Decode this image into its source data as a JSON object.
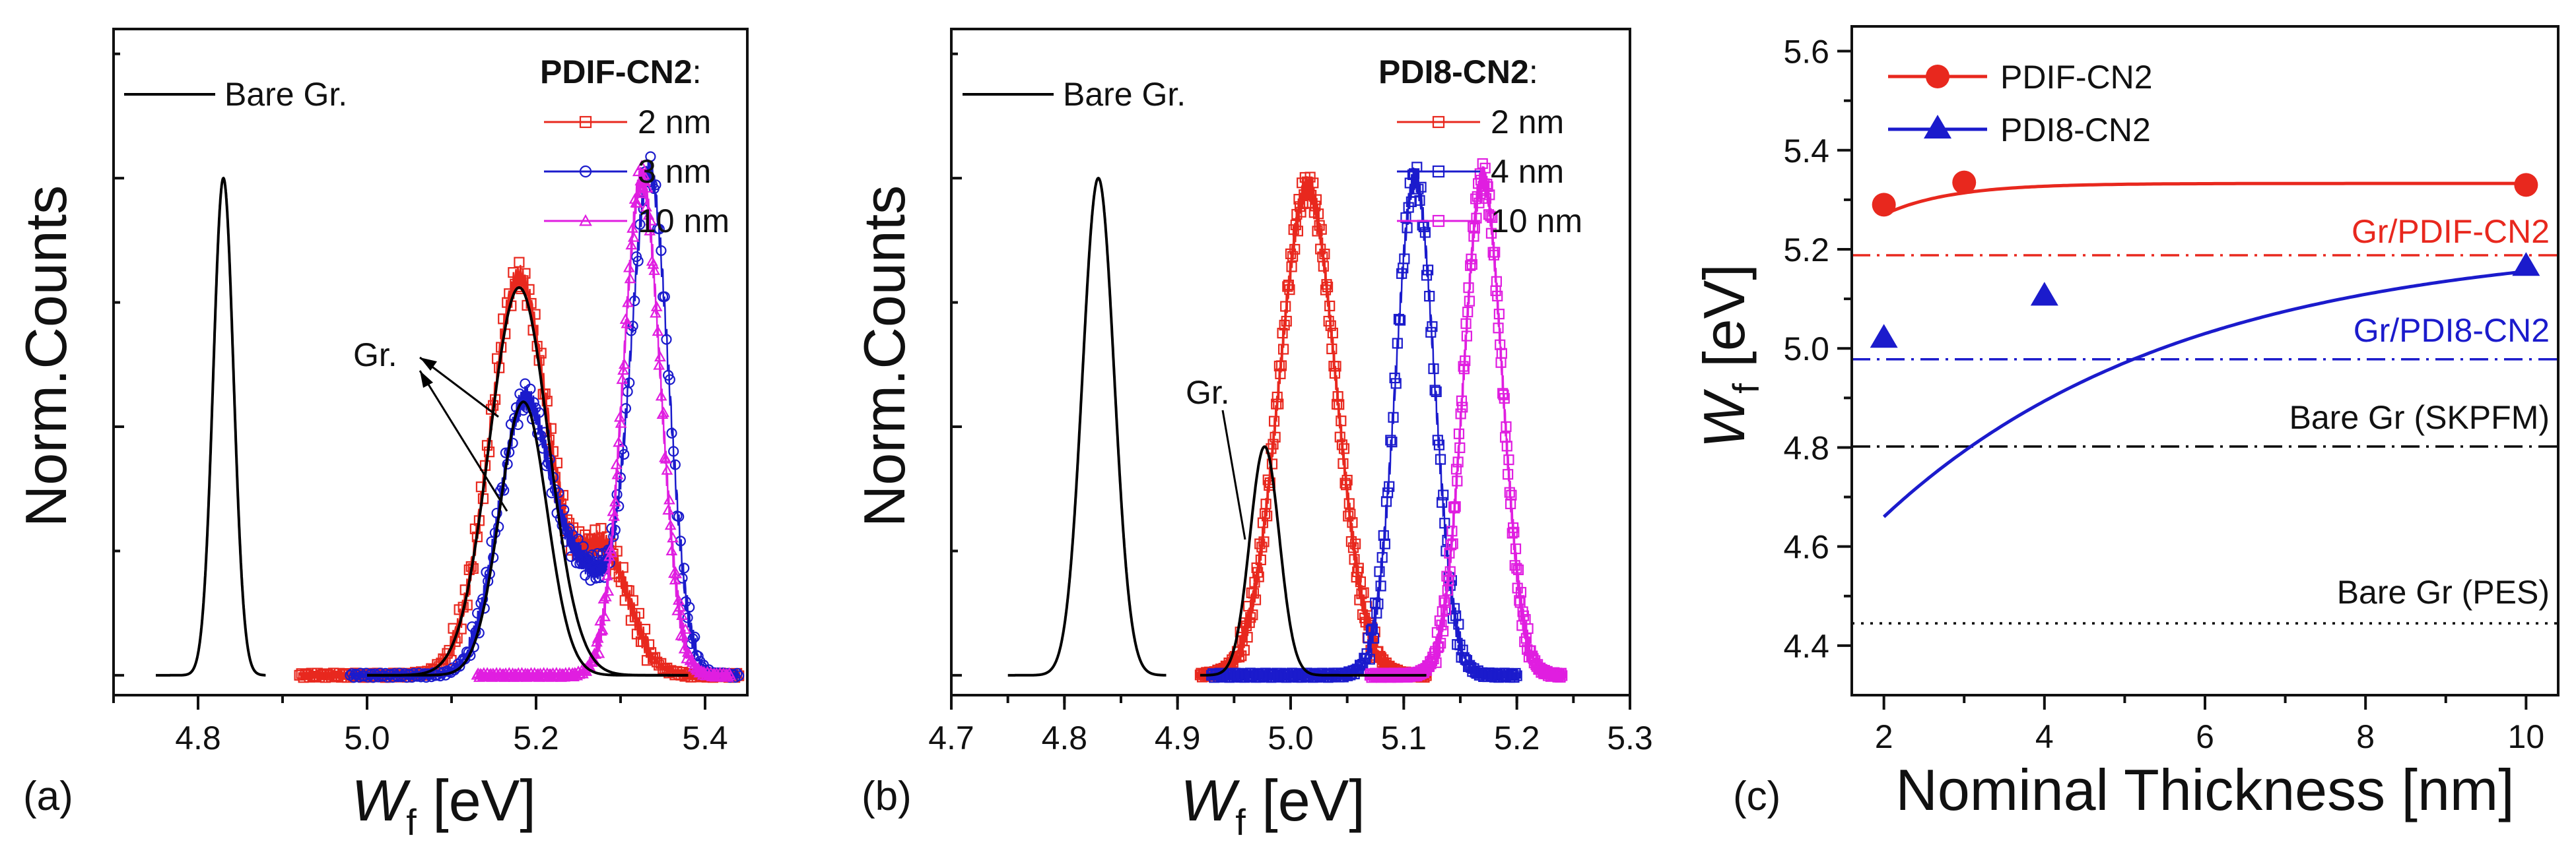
{
  "chart_data": [
    {
      "panel": "(a)",
      "type": "line",
      "xlabel": "W",
      "xlabel_sub": "f",
      "xlabel_unit": " [eV]",
      "ylabel": "Norm.Counts",
      "xlim": [
        4.7,
        5.45
      ],
      "ylim": [
        -0.04,
        1.3
      ],
      "xticks": [
        4.8,
        5.0,
        5.2,
        5.4
      ],
      "xtick_labels": [
        "4.8",
        "5.0",
        "5.2",
        "5.4"
      ],
      "legend_title": "PDIF-CN2",
      "legend_title_suffix": ":",
      "annotation": "Gr.",
      "series": [
        {
          "name": "Bare Gr.",
          "color": "#000000",
          "marker": "line",
          "peaks": [
            {
              "center": 4.83,
              "width": 0.012,
              "amp": 1.0
            }
          ],
          "x_range": [
            4.75,
            4.88
          ],
          "baseline": 0.0
        },
        {
          "name": "2 nm",
          "color": "#e8281e",
          "marker": "square",
          "peaks": [
            {
              "center": 5.18,
              "width": 0.035,
              "amp": 0.8
            },
            {
              "center": 5.28,
              "width": 0.03,
              "amp": 0.25
            }
          ],
          "x_range": [
            4.92,
            5.44
          ],
          "baseline": 0.0
        },
        {
          "name": "3 nm",
          "color": "#1b1bcc",
          "marker": "circle",
          "peaks": [
            {
              "center": 5.185,
              "width": 0.03,
              "amp": 0.52
            },
            {
              "center": 5.335,
              "width": 0.022,
              "amp": 0.98
            },
            {
              "center": 5.26,
              "width": 0.04,
              "amp": 0.2
            }
          ],
          "x_range": [
            4.98,
            5.44
          ],
          "baseline": 0.0
        },
        {
          "name": "10 nm",
          "color": "#e01ee0",
          "marker": "triangle",
          "peaks": [
            {
              "center": 5.325,
              "width": 0.022,
              "amp": 1.0
            }
          ],
          "x_range": [
            5.13,
            5.43
          ],
          "baseline": 0.0
        },
        {
          "name": "Gr. fit 1",
          "color": "#000000",
          "marker": "line",
          "legend": false,
          "peaks": [
            {
              "center": 5.18,
              "width": 0.035,
              "amp": 0.78
            }
          ],
          "x_range": [
            5.0,
            5.38
          ],
          "baseline": 0.0
        },
        {
          "name": "Gr. fit 2",
          "color": "#000000",
          "marker": "line",
          "legend": false,
          "peaks": [
            {
              "center": 5.185,
              "width": 0.028,
              "amp": 0.55
            }
          ],
          "x_range": [
            5.0,
            5.38
          ],
          "baseline": 0.0
        }
      ]
    },
    {
      "panel": "(b)",
      "type": "line",
      "xlabel": "W",
      "xlabel_sub": "f",
      "xlabel_unit": " [eV]",
      "ylabel": "Norm.Counts",
      "xlim": [
        4.7,
        5.3
      ],
      "ylim": [
        -0.04,
        1.3
      ],
      "xticks": [
        4.7,
        4.8,
        4.9,
        5.0,
        5.1,
        5.2,
        5.3
      ],
      "xtick_labels": [
        "4.7",
        "4.8",
        "4.9",
        "5.0",
        "5.1",
        "5.2",
        "5.3"
      ],
      "legend_title": "PDI8-CN2",
      "legend_title_suffix": ":",
      "annotation": "Gr.",
      "series": [
        {
          "name": "Bare Gr.",
          "color": "#000000",
          "marker": "line",
          "peaks": [
            {
              "center": 4.83,
              "width": 0.014,
              "amp": 1.0
            }
          ],
          "x_range": [
            4.75,
            4.89
          ],
          "baseline": 0.0
        },
        {
          "name": "2 nm",
          "color": "#e8281e",
          "marker": "square",
          "peaks": [
            {
              "center": 5.015,
              "width": 0.025,
              "amp": 0.98
            }
          ],
          "x_range": [
            4.92,
            5.12
          ],
          "baseline": 0.0
        },
        {
          "name": "4 nm",
          "color": "#1b1bcc",
          "marker": "square",
          "peaks": [
            {
              "center": 5.11,
              "width": 0.017,
              "amp": 1.0
            }
          ],
          "x_range": [
            4.93,
            5.2
          ],
          "baseline": 0.0
        },
        {
          "name": "10 nm",
          "color": "#e01ee0",
          "marker": "square",
          "peaks": [
            {
              "center": 5.17,
              "width": 0.017,
              "amp": 1.0
            }
          ],
          "x_range": [
            5.07,
            5.24
          ],
          "baseline": 0.0
        },
        {
          "name": "Gr. fit",
          "color": "#000000",
          "marker": "line",
          "legend": false,
          "peaks": [
            {
              "center": 4.977,
              "width": 0.013,
              "amp": 0.46
            }
          ],
          "x_range": [
            4.92,
            5.12
          ],
          "baseline": 0.0
        }
      ]
    },
    {
      "panel": "(c)",
      "type": "scatter",
      "xlabel": "Nominal Thickness [nm]",
      "ylabel": "W",
      "ylabel_sub": "f",
      "ylabel_unit": " [eV]",
      "xlim": [
        1.6,
        10.4
      ],
      "ylim": [
        4.3,
        5.65
      ],
      "xticks": [
        2,
        4,
        6,
        8,
        10
      ],
      "xtick_labels": [
        "2",
        "4",
        "6",
        "8",
        "10"
      ],
      "yticks": [
        4.4,
        4.6,
        4.8,
        5.0,
        5.2,
        5.4,
        5.6
      ],
      "ytick_labels": [
        "4.4",
        "4.6",
        "4.8",
        "5.0",
        "5.2",
        "5.4",
        "5.6"
      ],
      "series": [
        {
          "name": "PDIF-CN2",
          "color": "#e8281e",
          "marker": "circle",
          "x": [
            2,
            3,
            10
          ],
          "y": [
            5.29,
            5.335,
            5.33
          ],
          "fit": {
            "a": 5.333,
            "b": 0.063,
            "k": 1.2
          }
        },
        {
          "name": "PDI8-CN2",
          "color": "#1b1bcc",
          "marker": "triangle",
          "x": [
            2,
            4,
            10
          ],
          "y": [
            5.02,
            5.105,
            5.165
          ],
          "fit": {
            "a": 5.22,
            "b": 0.56,
            "k": 0.27
          }
        }
      ],
      "reference_lines": [
        {
          "label": "Gr/PDIF-CN2",
          "y": 5.188,
          "color": "#e8281e",
          "style": "dashdot",
          "label_color": "#e8281e"
        },
        {
          "label": "Gr/PDI8-CN2",
          "y": 4.978,
          "color": "#1b1bcc",
          "style": "dashdot",
          "label_color": "#1b1bcc"
        },
        {
          "label": "Bare Gr (SKPFM)",
          "y": 4.802,
          "color": "#000000",
          "style": "dashdot",
          "label_color": "#000000"
        },
        {
          "label": "Bare Gr (PES)",
          "y": 4.445,
          "color": "#000000",
          "style": "dotted",
          "label_color": "#000000"
        }
      ]
    }
  ]
}
